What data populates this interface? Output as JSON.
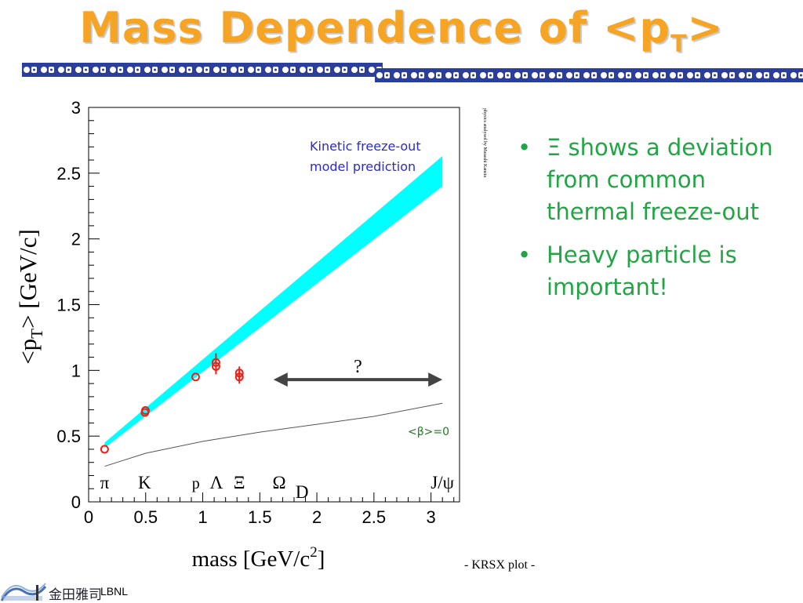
{
  "slide": {
    "title_main": "Mass Dependence of <p",
    "title_sub": "T",
    "title_end": ">",
    "bullets": [
      {
        "dot": "•",
        "symbol": "Ξ",
        "text": " shows a deviation from common thermal freeze-out"
      },
      {
        "dot": "•",
        "symbol": "",
        "text": "Heavy particle is important!"
      }
    ],
    "credit": "- KRSX plot -",
    "footer_logo_text": "金田雅司",
    "footer_lab": "LBNL"
  },
  "colors": {
    "title": "#f5a523",
    "bullet_text": "#22a544",
    "band": "#00ffff",
    "points": "#e8221b",
    "annotation_blue": "#2b2bc8",
    "annotation_green": "#1f7a1f"
  },
  "chart_data": {
    "type": "scatter",
    "xlabel_main": "mass [GeV/c",
    "xlabel_sup": "2",
    "xlabel_end": "]",
    "ylabel_main": "<p",
    "ylabel_sub": "T",
    "ylabel_end": "> [GeV/c]",
    "xlim": [
      0,
      3.25
    ],
    "ylim": [
      0,
      3
    ],
    "x_ticks": [
      0,
      0.5,
      1,
      1.5,
      2,
      2.5,
      3
    ],
    "x_tick_labels": [
      "0",
      "0.5",
      "1",
      "1.5",
      "2",
      "2.5",
      "3"
    ],
    "y_ticks": [
      0,
      0.5,
      1,
      1.5,
      2,
      2.5,
      3
    ],
    "y_tick_labels": [
      "0",
      "0.5",
      "1",
      "1.5",
      "2",
      "2.5",
      "3"
    ],
    "grid": false,
    "points": [
      {
        "x": 0.14,
        "y": 0.4,
        "err": 0
      },
      {
        "x": 0.494,
        "y": 0.68,
        "err": 0
      },
      {
        "x": 0.498,
        "y": 0.695,
        "err": 0
      },
      {
        "x": 0.938,
        "y": 0.95,
        "err": 0
      },
      {
        "x": 1.116,
        "y": 1.03,
        "err": 0.06
      },
      {
        "x": 1.116,
        "y": 1.06,
        "err": 0.07
      },
      {
        "x": 1.321,
        "y": 0.95,
        "err": 0.05
      },
      {
        "x": 1.321,
        "y": 0.98,
        "err": 0.05
      }
    ],
    "band": {
      "x": [
        0.14,
        3.1
      ],
      "lower": [
        0.41,
        2.4
      ],
      "upper": [
        0.45,
        2.63
      ]
    },
    "beta0_curve": {
      "x": [
        0.14,
        0.5,
        1.0,
        1.5,
        2.0,
        2.5,
        3.1
      ],
      "y": [
        0.27,
        0.37,
        0.46,
        0.53,
        0.59,
        0.65,
        0.75
      ]
    },
    "arrow": {
      "x1": 1.62,
      "x2": 3.1,
      "y": 0.93
    },
    "arrow_label": "?",
    "band_annotation": [
      "Kinetic freeze-out",
      "model prediction"
    ],
    "curve_annotation": "<β>=0",
    "particle_labels": [
      {
        "text": "π",
        "x": 0.14
      },
      {
        "text": "K",
        "x": 0.49
      },
      {
        "text": "p",
        "x": 0.94
      },
      {
        "text": "Λ",
        "x": 1.12
      },
      {
        "text": "Ξ",
        "x": 1.32
      },
      {
        "text": "Ω",
        "x": 1.67
      },
      {
        "text": "D",
        "x": 1.87
      },
      {
        "text": "J/ψ",
        "x": 3.1
      }
    ],
    "side_note": "physics analysed by Masashi Kaneta"
  }
}
